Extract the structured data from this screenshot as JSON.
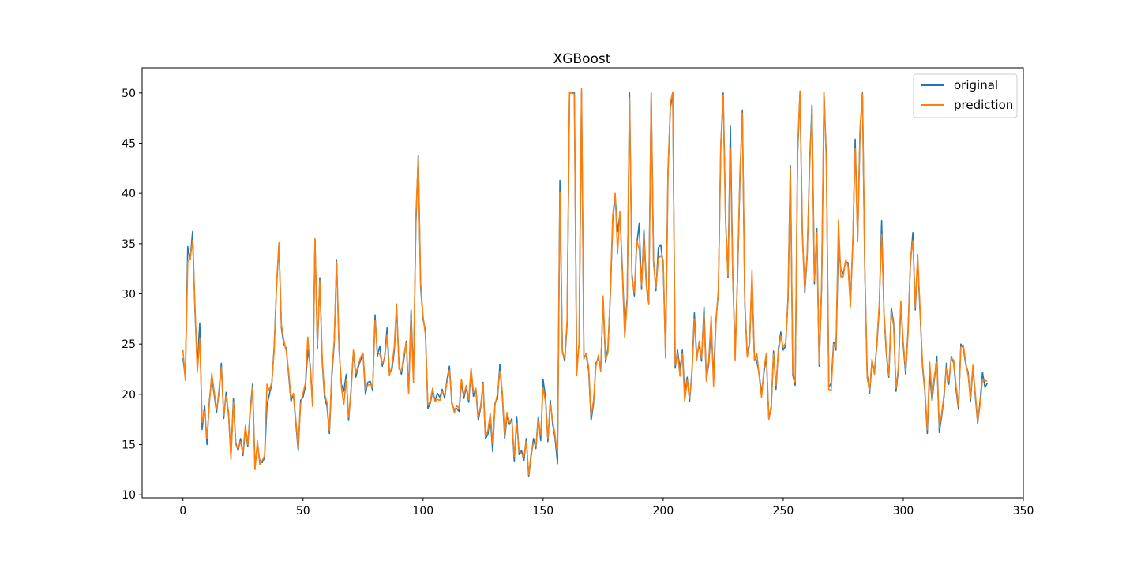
{
  "chart_data": {
    "type": "line",
    "title": "XGBoost",
    "xlabel": "",
    "ylabel": "",
    "xlim": [
      -17,
      350
    ],
    "ylim": [
      9.7,
      52.5
    ],
    "xticks": [
      0,
      50,
      100,
      150,
      200,
      250,
      300,
      350
    ],
    "yticks": [
      10,
      15,
      20,
      25,
      30,
      35,
      40,
      45,
      50
    ],
    "legend": {
      "placement": "top-right",
      "entries": [
        "original",
        "prediction"
      ]
    },
    "grid": false,
    "colors": {
      "original": "#1f77b4",
      "prediction": "#ff7f0e"
    },
    "series": [
      {
        "name": "original",
        "values": [
          23.6,
          21.7,
          34.7,
          33.4,
          36.2,
          28.4,
          22.8,
          27.1,
          16.5,
          18.9,
          15.0,
          19.3,
          21.7,
          20.0,
          18.2,
          20.3,
          23.1,
          17.6,
          20.2,
          17.9,
          13.8,
          19.6,
          15.2,
          14.4,
          15.6,
          13.9,
          16.6,
          14.8,
          18.4,
          21.0,
          12.7,
          14.9,
          13.4,
          13.2,
          13.7,
          18.9,
          20.0,
          21.0,
          24.7,
          30.8,
          34.9,
          26.6,
          25.0,
          24.6,
          22.0,
          19.3,
          20.0,
          17.2,
          14.4,
          19.4,
          19.7,
          20.8,
          24.4,
          22.9,
          18.9,
          35.4,
          24.6,
          31.6,
          23.2,
          19.6,
          18.8,
          16.1,
          21.7,
          25.1,
          33.4,
          24.5,
          21.0,
          20.3,
          22.0,
          17.4,
          20.5,
          24.3,
          21.7,
          22.7,
          23.4,
          24.0,
          20.0,
          21.2,
          21.3,
          20.4,
          27.9,
          23.8,
          24.8,
          22.8,
          23.7,
          26.6,
          22.2,
          22.4,
          24.3,
          28.5,
          22.8,
          22.0,
          23.5,
          25.3,
          20.3,
          28.4,
          21.6,
          37.0,
          43.8,
          30.7,
          27.5,
          26.3,
          18.6,
          19.1,
          20.3,
          19.4,
          20.1,
          19.7,
          20.5,
          19.6,
          21.5,
          22.8,
          19.0,
          18.5,
          18.6,
          18.3,
          21.2,
          19.6,
          20.7,
          19.2,
          22.5,
          19.8,
          20.5,
          17.4,
          18.7,
          21.2,
          15.6,
          16.0,
          17.8,
          14.3,
          19.2,
          19.5,
          23.0,
          19.9,
          15.6,
          17.8,
          17.0,
          17.6,
          13.3,
          17.8,
          14.0,
          14.4,
          13.4,
          15.6,
          11.8,
          13.8,
          15.6,
          14.6,
          17.8,
          15.4,
          21.5,
          19.6,
          15.3,
          19.4,
          17.0,
          15.6,
          13.1,
          41.3,
          24.3,
          23.3,
          27.0,
          50.0,
          50.0,
          50.0,
          22.7,
          25.0,
          50.0,
          23.8,
          23.8,
          22.3,
          17.4,
          19.1,
          23.1,
          23.6,
          22.6,
          29.4,
          23.2,
          24.6,
          29.9,
          37.2,
          39.8,
          36.2,
          37.9,
          32.5,
          26.4,
          29.6,
          50.0,
          32.0,
          29.8,
          34.9,
          37.0,
          30.5,
          36.4,
          31.1,
          29.1,
          50.0,
          33.3,
          30.3,
          34.6,
          34.9,
          32.9,
          24.1,
          42.3,
          48.5,
          50.0,
          22.6,
          24.4,
          22.5,
          24.4,
          20.0,
          21.7,
          19.3,
          22.4,
          28.1,
          23.7,
          25.0,
          23.3,
          28.7,
          21.5,
          23.0,
          26.7,
          21.7,
          27.5,
          30.1,
          44.8,
          50.0,
          37.6,
          31.6,
          46.7,
          31.5,
          24.3,
          31.7,
          41.7,
          48.3,
          29.0,
          24.0,
          25.1,
          31.5,
          23.7,
          23.3,
          22.0,
          20.1,
          22.2,
          23.7,
          17.6,
          18.5,
          24.3,
          20.5,
          24.5,
          26.2,
          24.4,
          24.8,
          29.6,
          42.8,
          21.9,
          20.9,
          44.0,
          50.0,
          36.0,
          30.1,
          33.8,
          43.1,
          48.8,
          31.0,
          36.5,
          22.8,
          30.7,
          50.0,
          43.5,
          20.7,
          21.1,
          25.2,
          24.4,
          35.2,
          32.4,
          32.0,
          33.2,
          33.1,
          29.1,
          35.1,
          45.4,
          35.4,
          46.0,
          50.0,
          32.2,
          22.0,
          20.1,
          23.2,
          22.3,
          24.8,
          28.5,
          37.3,
          27.9,
          23.9,
          21.7,
          28.6,
          27.1,
          20.3,
          22.5,
          29.0,
          24.8,
          22.0,
          26.4,
          33.1,
          36.1,
          28.4,
          33.4,
          28.2,
          22.8,
          20.3,
          16.1,
          22.1,
          19.4,
          21.6,
          23.8,
          16.2,
          17.8,
          19.8,
          23.1,
          21.0,
          23.8,
          23.1,
          20.4,
          18.5,
          25.0,
          24.6,
          23.0,
          22.2,
          19.3,
          22.6,
          19.8,
          17.1,
          19.4,
          22.2,
          20.7,
          21.1
        ],
        "note": ""
      },
      {
        "name": "prediction",
        "values": [
          24.4,
          21.4,
          33.2,
          33.5,
          35.3,
          28.9,
          22.2,
          25.6,
          17.2,
          18.3,
          15.6,
          19.0,
          22.1,
          20.3,
          18.5,
          20.0,
          22.7,
          17.9,
          19.8,
          18.2,
          13.5,
          19.2,
          15.0,
          14.6,
          15.3,
          14.2,
          16.9,
          15.0,
          18.0,
          20.7,
          12.5,
          15.4,
          13.0,
          13.4,
          13.9,
          21.0,
          20.4,
          21.2,
          24.3,
          31.0,
          35.1,
          26.9,
          25.4,
          24.3,
          22.3,
          19.6,
          20.1,
          17.5,
          14.8,
          19.0,
          20.1,
          21.1,
          25.7,
          22.5,
          18.8,
          35.5,
          24.9,
          31.3,
          23.5,
          20.0,
          19.2,
          16.4,
          22.2,
          25.4,
          33.2,
          24.8,
          20.7,
          19.0,
          21.5,
          17.7,
          20.2,
          24.4,
          22.1,
          22.9,
          23.7,
          24.1,
          20.5,
          20.9,
          21.0,
          20.7,
          27.4,
          24.2,
          24.0,
          23.1,
          23.5,
          25.9,
          21.9,
          22.8,
          24.7,
          29.0,
          22.5,
          22.3,
          23.9,
          25.1,
          20.1,
          27.6,
          21.2,
          37.8,
          43.5,
          31.1,
          27.8,
          25.9,
          18.9,
          19.3,
          20.6,
          19.3,
          19.5,
          19.4,
          20.3,
          19.9,
          21.2,
          22.4,
          19.3,
          18.2,
          18.9,
          18.6,
          21.5,
          19.9,
          20.9,
          19.5,
          22.6,
          20.2,
          20.6,
          17.8,
          18.9,
          21.0,
          15.8,
          16.4,
          18.1,
          15.1,
          19.0,
          20.0,
          22.3,
          20.3,
          15.9,
          18.2,
          17.2,
          17.3,
          13.8,
          17.1,
          14.3,
          14.1,
          13.8,
          15.3,
          12.0,
          14.1,
          15.2,
          14.9,
          17.4,
          15.9,
          20.7,
          19.2,
          15.6,
          19.0,
          17.4,
          15.9,
          14.0,
          40.1,
          24.1,
          23.6,
          27.3,
          50.1,
          50.0,
          49.9,
          21.9,
          25.3,
          50.4,
          23.5,
          24.1,
          22.6,
          17.9,
          19.4,
          22.8,
          23.9,
          22.3,
          29.8,
          23.5,
          24.1,
          30.3,
          37.8,
          40.0,
          34.0,
          38.2,
          32.0,
          25.6,
          29.3,
          49.5,
          31.6,
          30.1,
          35.3,
          34.5,
          30.8,
          35.7,
          30.7,
          29.0,
          49.7,
          33.0,
          30.6,
          33.5,
          33.8,
          33.4,
          23.6,
          41.8,
          49.0,
          50.1,
          22.9,
          24.1,
          21.8,
          24.1,
          19.3,
          21.4,
          19.6,
          22.1,
          27.5,
          23.4,
          25.3,
          23.6,
          27.9,
          21.3,
          23.4,
          27.8,
          20.8,
          27.1,
          30.5,
          45.0,
          49.8,
          37.3,
          31.8,
          44.5,
          31.7,
          23.4,
          32.0,
          42.2,
          48.0,
          29.4,
          23.7,
          24.9,
          32.4,
          23.4,
          24.1,
          21.8,
          19.7,
          22.6,
          24.1,
          17.5,
          18.9,
          24.0,
          20.9,
          24.2,
          25.8,
          24.7,
          25.1,
          29.3,
          42.5,
          22.2,
          21.2,
          44.5,
          50.2,
          35.7,
          30.4,
          34.1,
          42.5,
          48.2,
          31.3,
          36.1,
          23.0,
          31.0,
          50.1,
          43.0,
          20.5,
          20.4,
          25.0,
          24.7,
          37.3,
          31.7,
          31.7,
          33.4,
          32.8,
          28.7,
          35.4,
          44.5,
          35.2,
          46.5,
          49.9,
          32.5,
          21.6,
          20.4,
          23.5,
          22.0,
          25.1,
          28.9,
          35.9,
          28.2,
          24.2,
          21.9,
          28.2,
          26.8,
          20.6,
          22.8,
          29.3,
          25.1,
          22.4,
          26.0,
          33.5,
          35.3,
          28.7,
          33.9,
          28.5,
          23.1,
          20.5,
          16.5,
          23.2,
          19.8,
          21.9,
          23.2,
          16.7,
          18.1,
          20.1,
          22.6,
          21.3,
          23.6,
          23.4,
          20.8,
          18.8,
          24.7,
          24.9,
          23.2,
          21.9,
          19.6,
          22.9,
          20.1,
          17.3,
          19.0,
          21.5,
          21.4,
          21.3
        ]
      }
    ]
  }
}
